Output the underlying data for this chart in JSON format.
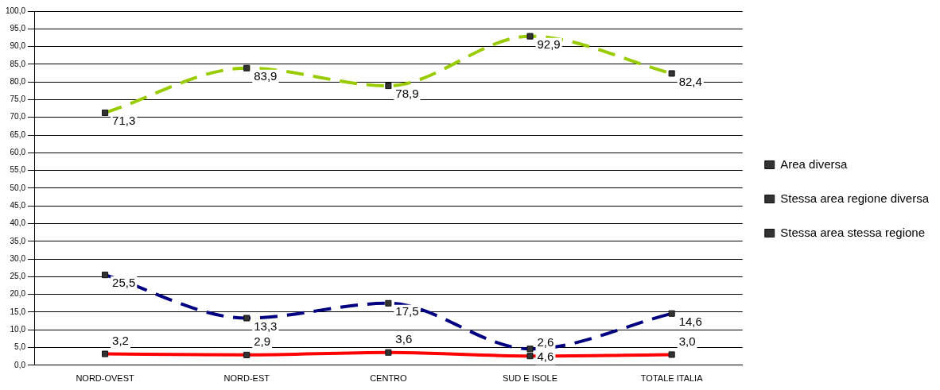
{
  "chart_data": {
    "type": "line",
    "categories": [
      "NORD-OVEST",
      "NORD-EST",
      "CENTRO",
      "SUD E ISOLE",
      "TOTALE ITALIA"
    ],
    "ylim": [
      0,
      100
    ],
    "yticks": [
      {
        "value": 0,
        "label": "0,0"
      },
      {
        "value": 5,
        "label": "5,0"
      },
      {
        "value": 10,
        "label": "10,0"
      },
      {
        "value": 15,
        "label": "15,0"
      },
      {
        "value": 20,
        "label": "20,0"
      },
      {
        "value": 25,
        "label": "25,0"
      },
      {
        "value": 30,
        "label": "30,0"
      },
      {
        "value": 35,
        "label": "35,0"
      },
      {
        "value": 40,
        "label": "40,0"
      },
      {
        "value": 45,
        "label": "45,0"
      },
      {
        "value": 50,
        "label": "50,0"
      },
      {
        "value": 55,
        "label": "55,0"
      },
      {
        "value": 60,
        "label": "60,0"
      },
      {
        "value": 65,
        "label": "65,0"
      },
      {
        "value": 70,
        "label": "70,0"
      },
      {
        "value": 75,
        "label": "75,0"
      },
      {
        "value": 80,
        "label": "80,0"
      },
      {
        "value": 85,
        "label": "85,0"
      },
      {
        "value": 90,
        "label": "90,0"
      },
      {
        "value": 95,
        "label": "95,0"
      },
      {
        "value": 100,
        "label": "100,0"
      }
    ],
    "series": [
      {
        "name": "Area diversa",
        "color": "#000080",
        "line_style": "dashed",
        "values": [
          25.5,
          13.3,
          17.5,
          4.6,
          14.6
        ],
        "value_labels": [
          "25,5",
          "13,3",
          "17,5",
          "4,6",
          "14,6"
        ]
      },
      {
        "name": "Stessa area regione diversa",
        "color": "#ff0000",
        "line_style": "solid",
        "values": [
          3.2,
          2.9,
          3.6,
          2.6,
          3.0
        ],
        "value_labels": [
          "3,2",
          "2,9",
          "3,6",
          "2,6",
          "3,0"
        ]
      },
      {
        "name": "Stessa area stessa regione",
        "color": "#99cc00",
        "line_style": "dashed",
        "values": [
          71.3,
          83.9,
          78.9,
          92.9,
          82.4
        ],
        "value_labels": [
          "71,3",
          "83,9",
          "78,9",
          "92,9",
          "82,4"
        ]
      }
    ],
    "marker": "square",
    "grid": "y",
    "legend": "right"
  }
}
